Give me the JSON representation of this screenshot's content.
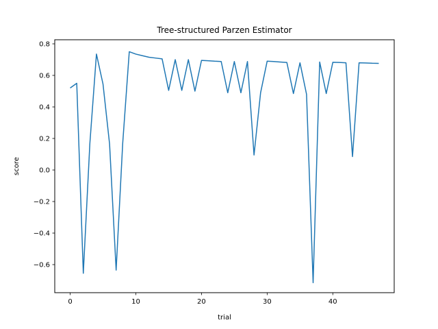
{
  "chart_data": {
    "type": "line",
    "title": "Tree-structured Parzen Estimator",
    "xlabel": "trial",
    "ylabel": "score",
    "xlim": [
      -2.35,
      49.35
    ],
    "ylim": [
      -0.778,
      0.826
    ],
    "xticks": [
      0,
      10,
      20,
      30,
      40
    ],
    "yticks": [
      -0.6,
      -0.4,
      -0.2,
      0.0,
      0.2,
      0.4,
      0.6,
      0.8
    ],
    "ytick_labels": [
      "−0.6",
      "−0.4",
      "−0.2",
      "0.0",
      "0.2",
      "0.4",
      "0.6",
      "0.8"
    ],
    "grid": false,
    "series": [
      {
        "color": "#1f77b4",
        "x": [
          0,
          1,
          2,
          3,
          4,
          5,
          6,
          7,
          8,
          9,
          10,
          11,
          12,
          13,
          14,
          15,
          16,
          17,
          18,
          19,
          20,
          21,
          22,
          23,
          24,
          25,
          26,
          27,
          28,
          29,
          30,
          31,
          32,
          33,
          34,
          35,
          36,
          37,
          38,
          39,
          40,
          41,
          42,
          43,
          44,
          45,
          46,
          47
        ],
        "values": [
          0.52,
          0.55,
          -0.655,
          0.17,
          0.735,
          0.545,
          0.165,
          -0.635,
          0.17,
          0.75,
          0.735,
          0.725,
          0.715,
          0.71,
          0.705,
          0.505,
          0.7,
          0.505,
          0.7,
          0.5,
          0.695,
          0.693,
          0.69,
          0.688,
          0.49,
          0.688,
          0.49,
          0.688,
          0.095,
          0.49,
          0.69,
          0.688,
          0.685,
          0.682,
          0.485,
          0.68,
          0.48,
          -0.715,
          0.685,
          0.485,
          0.683,
          0.682,
          0.68,
          0.085,
          0.68,
          0.679,
          0.677,
          0.676
        ]
      }
    ]
  }
}
